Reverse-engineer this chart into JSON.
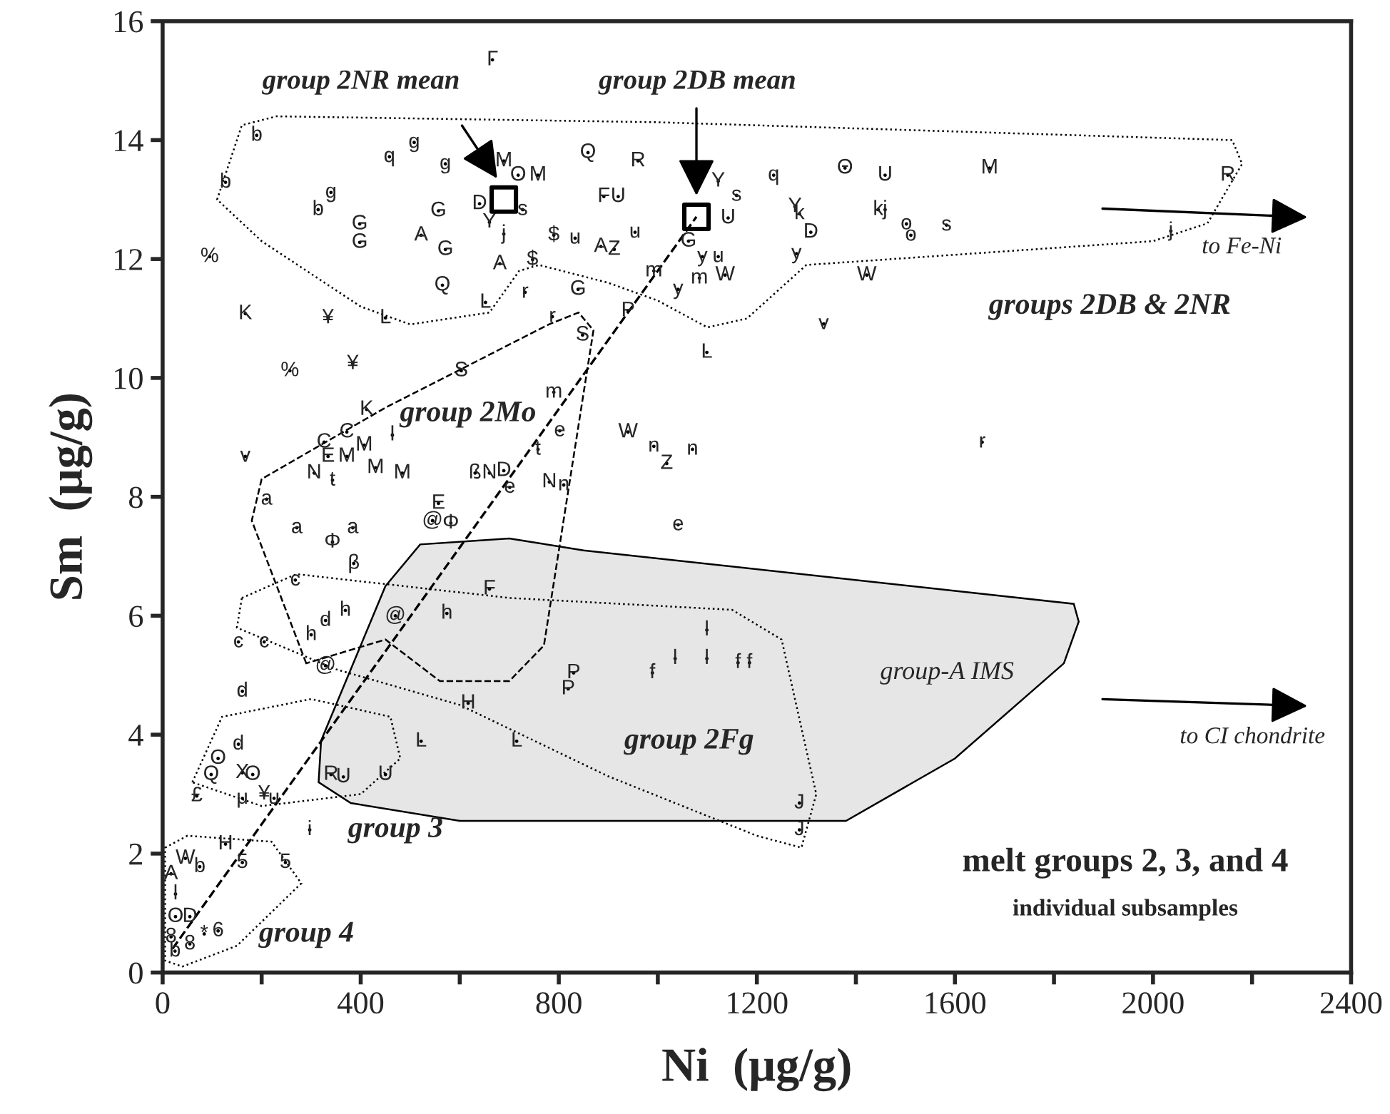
{
  "chart_data": {
    "type": "scatter",
    "xlabel": "Ni  (μg/g)",
    "ylabel": "Sm  (μg/g)",
    "xlim": [
      0,
      2400
    ],
    "ylim": [
      0,
      16
    ],
    "xticks": [
      0,
      {
        "value": 200,
        "label": null
      },
      400,
      {
        "value": 600,
        "label": null
      },
      800,
      {
        "value": 1000,
        "label": null
      },
      1200,
      {
        "value": 1400,
        "label": null
      },
      1600,
      {
        "value": 1800,
        "label": null
      },
      2000,
      {
        "value": 2200,
        "label": null
      },
      2400
    ],
    "yticks": [
      0,
      2,
      4,
      6,
      8,
      10,
      12,
      14,
      16
    ],
    "series": [
      {
        "color": "#000000",
        "marker": "circle",
        "x": [
          190,
          127,
          340,
          314,
          398,
          398,
          458,
          508,
          571,
          557,
          522,
          571,
          689,
          718,
          758,
          640,
          660,
          689,
          727,
          681,
          747,
          790,
          833,
          885,
          912,
          954,
          859,
          960,
          891,
          920,
          565,
          652,
          732,
          787,
          839,
          848,
          992,
          1041,
          940,
          1084,
          1136,
          1122,
          1090,
          1062,
          1122,
          1159,
          1142,
          1099,
          95,
          167,
          334,
          450,
          257,
          384,
          603,
          790,
          412,
          802,
          940,
          992,
          1018,
          1070,
          167,
          326,
          372,
          407,
          334,
          372,
          306,
          343,
          430,
          484,
          464,
          631,
          660,
          689,
          701,
          758,
          781,
          810,
          1041,
          210,
          271,
          343,
          384,
          557,
          545,
          582,
          1234,
          1378,
          1459,
          1670,
          2151,
          1277,
          1286,
          1309,
          1280,
          1445,
          1459,
          1502,
          1511,
          1583,
          1422,
          1335,
          2036,
          1655,
          386,
          268,
          660,
          369,
          329,
          300,
          470,
          574,
          153,
          205,
          329,
          161,
          1099,
          1035,
          1099,
          989,
          1162,
          1185,
          830,
          819,
          617,
          522,
          715,
          153,
          112,
          98,
          161,
          182,
          69,
          161,
          205,
          225,
          340,
          365,
          450,
          297,
          127,
          161,
          248,
          46,
          75,
          112,
          84,
          55,
          17,
          26,
          26,
          55,
          17,
          25,
          1286,
          1286,
          666
        ],
        "values": [
          14.08,
          13.29,
          13.12,
          12.83,
          12.59,
          12.28,
          13.72,
          13.96,
          13.6,
          12.81,
          12.4,
          12.16,
          13.65,
          13.41,
          13.41,
          12.93,
          12.62,
          12.42,
          12.83,
          11.92,
          11.99,
          12.4,
          12.35,
          12.21,
          12.16,
          12.45,
          13.79,
          13.65,
          13.05,
          13.05,
          11.56,
          11.27,
          11.44,
          11.03,
          11.49,
          10.72,
          11.8,
          11.49,
          11.13,
          11.68,
          11.73,
          12.04,
          12.04,
          12.3,
          13.31,
          13.07,
          12.69,
          10.43,
          12.04,
          11.08,
          11.01,
          11.01,
          10.12,
          10.24,
          10.12,
          9.76,
          9.47,
          9.11,
          9.09,
          8.85,
          8.56,
          8.8,
          8.68,
          8.92,
          9.09,
          8.87,
          8.68,
          8.68,
          8.4,
          8.28,
          8.49,
          8.4,
          9.04,
          8.4,
          8.4,
          8.44,
          8.16,
          8.8,
          8.25,
          8.2,
          7.53,
          7.96,
          7.48,
          7.24,
          7.48,
          7.89,
          7.6,
          7.56,
          13.41,
          13.53,
          13.41,
          13.53,
          13.41,
          12.88,
          12.76,
          12.45,
          12.09,
          12.83,
          12.83,
          12.59,
          12.4,
          12.57,
          11.73,
          10.91,
          12.47,
          8.92,
          6.88,
          6.6,
          6.45,
          6.09,
          5.92,
          5.68,
          6.0,
          6.04,
          5.56,
          5.56,
          5.16,
          4.73,
          5.76,
          5.28,
          5.28,
          5.04,
          5.21,
          5.21,
          5.04,
          4.77,
          4.53,
          3.89,
          3.89,
          3.84,
          3.6,
          3.33,
          3.36,
          3.33,
          2.97,
          2.93,
          3.0,
          2.93,
          3.33,
          3.29,
          3.33,
          2.4,
          2.16,
          1.85,
          1.85,
          1.92,
          1.78,
          0.7,
          0.65,
          0.48,
          1.66,
          1.32,
          0.94,
          0.94,
          0.6,
          0.36,
          2.85,
          2.4,
          15.35
        ]
      },
      {
        "color": "#000000",
        "marker": "square",
        "x": [
          689,
          1078
        ],
        "values": [
          13.0,
          12.71
        ]
      }
    ],
    "annotations": [
      "group 2NR mean",
      "group 2DB mean",
      "groups 2DB & 2NR",
      "group 2Mo",
      "group-A IMS",
      "group 2Fg",
      "group 3",
      "group 4",
      "to Fe-Ni",
      "to CI chondrite",
      "melt groups 2, 3, and 4",
      "individual subsamples",
      {
        "text": "b",
        "x": 190,
        "y": 14.08
      },
      {
        "text": "b",
        "x": 127,
        "y": 13.29
      },
      {
        "text": "g",
        "x": 340,
        "y": 13.12
      },
      {
        "text": "b",
        "x": 314,
        "y": 12.83
      },
      {
        "text": "G",
        "x": 398,
        "y": 12.59
      },
      {
        "text": "G",
        "x": 398,
        "y": 12.28
      },
      {
        "text": "q",
        "x": 458,
        "y": 13.72
      },
      {
        "text": "g",
        "x": 508,
        "y": 13.96
      },
      {
        "text": "g",
        "x": 571,
        "y": 13.6
      },
      {
        "text": "G",
        "x": 557,
        "y": 12.81
      },
      {
        "text": "A",
        "x": 522,
        "y": 12.4
      },
      {
        "text": "G",
        "x": 571,
        "y": 12.16
      },
      {
        "text": "M",
        "x": 689,
        "y": 13.65
      },
      {
        "text": "O",
        "x": 718,
        "y": 13.41
      },
      {
        "text": "M",
        "x": 758,
        "y": 13.41
      },
      {
        "text": "D",
        "x": 640,
        "y": 12.93
      },
      {
        "text": "Y",
        "x": 660,
        "y": 12.62
      },
      {
        "text": "j",
        "x": 689,
        "y": 12.42
      },
      {
        "text": "s",
        "x": 727,
        "y": 12.83
      },
      {
        "text": "A",
        "x": 681,
        "y": 11.92
      },
      {
        "text": "$",
        "x": 747,
        "y": 11.99
      },
      {
        "text": "$",
        "x": 790,
        "y": 12.4
      },
      {
        "text": "u",
        "x": 833,
        "y": 12.35
      },
      {
        "text": "A",
        "x": 885,
        "y": 12.21
      },
      {
        "text": "Z",
        "x": 912,
        "y": 12.16
      },
      {
        "text": "u",
        "x": 954,
        "y": 12.45
      },
      {
        "text": "Q",
        "x": 859,
        "y": 13.79
      },
      {
        "text": "R",
        "x": 960,
        "y": 13.65
      },
      {
        "text": "F",
        "x": 891,
        "y": 13.05
      },
      {
        "text": "U",
        "x": 920,
        "y": 13.05
      },
      {
        "text": "Q",
        "x": 565,
        "y": 11.56
      },
      {
        "text": "L",
        "x": 652,
        "y": 11.27
      },
      {
        "text": "r",
        "x": 732,
        "y": 11.44
      },
      {
        "text": "r",
        "x": 787,
        "y": 11.03
      },
      {
        "text": "G",
        "x": 839,
        "y": 11.49
      },
      {
        "text": "S",
        "x": 848,
        "y": 10.72
      },
      {
        "text": "m",
        "x": 992,
        "y": 11.8
      },
      {
        "text": "y",
        "x": 1041,
        "y": 11.49
      },
      {
        "text": "P",
        "x": 940,
        "y": 11.13
      },
      {
        "text": "m",
        "x": 1084,
        "y": 11.68
      },
      {
        "text": "W",
        "x": 1136,
        "y": 11.73
      },
      {
        "text": "u",
        "x": 1122,
        "y": 12.04
      },
      {
        "text": "y",
        "x": 1090,
        "y": 12.04
      },
      {
        "text": "G",
        "x": 1062,
        "y": 12.3
      },
      {
        "text": "Y",
        "x": 1122,
        "y": 13.31
      },
      {
        "text": "s",
        "x": 1159,
        "y": 13.07
      },
      {
        "text": "U",
        "x": 1142,
        "y": 12.69
      },
      {
        "text": "L",
        "x": 1099,
        "y": 10.43
      },
      {
        "text": "%",
        "x": 95,
        "y": 12.04
      },
      {
        "text": "K",
        "x": 167,
        "y": 11.08
      },
      {
        "text": "¥",
        "x": 334,
        "y": 11.01
      },
      {
        "text": "L",
        "x": 450,
        "y": 11.01
      },
      {
        "text": "%",
        "x": 257,
        "y": 10.12
      },
      {
        "text": "¥",
        "x": 384,
        "y": 10.24
      },
      {
        "text": "S",
        "x": 603,
        "y": 10.12
      },
      {
        "text": "m",
        "x": 790,
        "y": 9.76
      },
      {
        "text": "K",
        "x": 412,
        "y": 9.47
      },
      {
        "text": "e",
        "x": 802,
        "y": 9.11
      },
      {
        "text": "W",
        "x": 940,
        "y": 9.09
      },
      {
        "text": "n",
        "x": 992,
        "y": 8.85
      },
      {
        "text": "Z",
        "x": 1018,
        "y": 8.56
      },
      {
        "text": "n",
        "x": 1070,
        "y": 8.8
      },
      {
        "text": "v",
        "x": 167,
        "y": 8.68
      },
      {
        "text": "C",
        "x": 326,
        "y": 8.92
      },
      {
        "text": "C",
        "x": 372,
        "y": 9.09
      },
      {
        "text": "M",
        "x": 407,
        "y": 8.87
      },
      {
        "text": "E",
        "x": 334,
        "y": 8.68
      },
      {
        "text": "M",
        "x": 372,
        "y": 8.68
      },
      {
        "text": "N",
        "x": 306,
        "y": 8.4
      },
      {
        "text": "t",
        "x": 343,
        "y": 8.28
      },
      {
        "text": "M",
        "x": 430,
        "y": 8.49
      },
      {
        "text": "M",
        "x": 484,
        "y": 8.4
      },
      {
        "text": "l",
        "x": 464,
        "y": 9.04
      },
      {
        "text": "ß",
        "x": 631,
        "y": 8.4
      },
      {
        "text": "N",
        "x": 660,
        "y": 8.4
      },
      {
        "text": "D",
        "x": 689,
        "y": 8.44
      },
      {
        "text": "e",
        "x": 701,
        "y": 8.16
      },
      {
        "text": "t",
        "x": 758,
        "y": 8.8
      },
      {
        "text": "N",
        "x": 781,
        "y": 8.25
      },
      {
        "text": "n",
        "x": 810,
        "y": 8.2
      },
      {
        "text": "e",
        "x": 1041,
        "y": 7.53
      },
      {
        "text": "a",
        "x": 210,
        "y": 7.96
      },
      {
        "text": "a",
        "x": 271,
        "y": 7.48
      },
      {
        "text": "Φ",
        "x": 343,
        "y": 7.24
      },
      {
        "text": "a",
        "x": 384,
        "y": 7.48
      },
      {
        "text": "E",
        "x": 557,
        "y": 7.89
      },
      {
        "text": "@",
        "x": 545,
        "y": 7.6
      },
      {
        "text": "Φ",
        "x": 582,
        "y": 7.56
      },
      {
        "text": "q",
        "x": 1234,
        "y": 13.41
      },
      {
        "text": "Θ",
        "x": 1378,
        "y": 13.53
      },
      {
        "text": "U",
        "x": 1459,
        "y": 13.41
      },
      {
        "text": "M",
        "x": 1670,
        "y": 13.53
      },
      {
        "text": "R",
        "x": 2151,
        "y": 13.41
      },
      {
        "text": "Y",
        "x": 1277,
        "y": 12.88
      },
      {
        "text": "k",
        "x": 1286,
        "y": 12.76
      },
      {
        "text": "D",
        "x": 1309,
        "y": 12.45
      },
      {
        "text": "y",
        "x": 1280,
        "y": 12.09
      },
      {
        "text": "k",
        "x": 1445,
        "y": 12.83
      },
      {
        "text": "j",
        "x": 1459,
        "y": 12.83
      },
      {
        "text": "o",
        "x": 1502,
        "y": 12.59
      },
      {
        "text": "o",
        "x": 1511,
        "y": 12.4
      },
      {
        "text": "s",
        "x": 1583,
        "y": 12.57
      },
      {
        "text": "W",
        "x": 1422,
        "y": 11.73
      },
      {
        "text": "v",
        "x": 1335,
        "y": 10.91
      },
      {
        "text": "j",
        "x": 2036,
        "y": 12.47
      },
      {
        "text": "r",
        "x": 1655,
        "y": 8.92
      },
      {
        "text": "β",
        "x": 386,
        "y": 6.88
      },
      {
        "text": "c",
        "x": 268,
        "y": 6.6
      },
      {
        "text": "F",
        "x": 660,
        "y": 6.45
      },
      {
        "text": "h",
        "x": 369,
        "y": 6.09
      },
      {
        "text": "d",
        "x": 329,
        "y": 5.92
      },
      {
        "text": "h",
        "x": 300,
        "y": 5.68
      },
      {
        "text": "@",
        "x": 470,
        "y": 6.0
      },
      {
        "text": "h",
        "x": 574,
        "y": 6.04
      },
      {
        "text": "c",
        "x": 153,
        "y": 5.56
      },
      {
        "text": "c",
        "x": 205,
        "y": 5.56
      },
      {
        "text": "@",
        "x": 329,
        "y": 5.16
      },
      {
        "text": "d",
        "x": 161,
        "y": 4.73
      },
      {
        "text": "l",
        "x": 1099,
        "y": 5.76
      },
      {
        "text": "l",
        "x": 1035,
        "y": 5.28
      },
      {
        "text": "l",
        "x": 1099,
        "y": 5.28
      },
      {
        "text": "f",
        "x": 989,
        "y": 5.04
      },
      {
        "text": "f",
        "x": 1162,
        "y": 5.21
      },
      {
        "text": "f",
        "x": 1185,
        "y": 5.21
      },
      {
        "text": "P",
        "x": 830,
        "y": 5.04
      },
      {
        "text": "P",
        "x": 819,
        "y": 4.77
      },
      {
        "text": "H",
        "x": 617,
        "y": 4.53
      },
      {
        "text": "L",
        "x": 522,
        "y": 3.89
      },
      {
        "text": "L",
        "x": 715,
        "y": 3.89
      },
      {
        "text": "d",
        "x": 153,
        "y": 3.84
      },
      {
        "text": "O",
        "x": 112,
        "y": 3.6
      },
      {
        "text": "Q",
        "x": 98,
        "y": 3.33
      },
      {
        "text": "X",
        "x": 161,
        "y": 3.36
      },
      {
        "text": "O",
        "x": 182,
        "y": 3.33
      },
      {
        "text": "£",
        "x": 69,
        "y": 2.97
      },
      {
        "text": "μ",
        "x": 161,
        "y": 2.93
      },
      {
        "text": "¥",
        "x": 205,
        "y": 3.0
      },
      {
        "text": "u",
        "x": 225,
        "y": 2.93
      },
      {
        "text": "R",
        "x": 340,
        "y": 3.33
      },
      {
        "text": "U",
        "x": 365,
        "y": 3.29
      },
      {
        "text": "U",
        "x": 450,
        "y": 3.33
      },
      {
        "text": "i",
        "x": 297,
        "y": 2.4
      },
      {
        "text": "H",
        "x": 127,
        "y": 2.16
      },
      {
        "text": "5",
        "x": 161,
        "y": 1.85
      },
      {
        "text": "5",
        "x": 248,
        "y": 1.85
      },
      {
        "text": "W",
        "x": 46,
        "y": 1.92
      },
      {
        "text": "b",
        "x": 75,
        "y": 1.78
      },
      {
        "text": "6",
        "x": 112,
        "y": 0.7
      },
      {
        "text": "*",
        "x": 84,
        "y": 0.65
      },
      {
        "text": "8",
        "x": 55,
        "y": 0.48
      },
      {
        "text": "A",
        "x": 17,
        "y": 1.66
      },
      {
        "text": "l",
        "x": 26,
        "y": 1.32
      },
      {
        "text": "O",
        "x": 26,
        "y": 0.94
      },
      {
        "text": "D",
        "x": 55,
        "y": 0.94
      },
      {
        "text": "8",
        "x": 17,
        "y": 0.6
      },
      {
        "text": "b",
        "x": 25,
        "y": 0.36
      },
      {
        "text": "J",
        "x": 1286,
        "y": 2.85
      },
      {
        "text": "J",
        "x": 1286,
        "y": 2.4
      },
      {
        "text": "Г",
        "x": 666,
        "y": 15.35
      }
    ]
  }
}
